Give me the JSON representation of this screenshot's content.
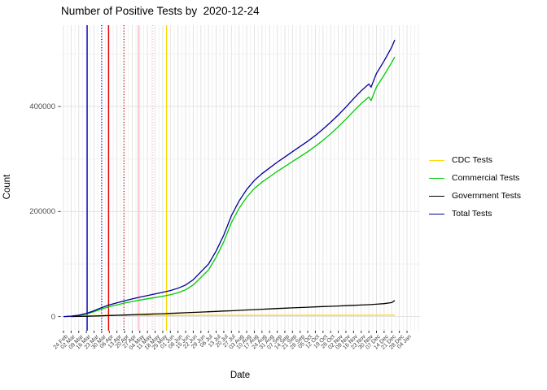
{
  "title": "Number of Positive Tests by  2020-12-24",
  "chart_data": {
    "type": "line",
    "title": "Number of Positive Tests by  2020-12-24",
    "xlabel": "Date",
    "ylabel": "Count",
    "grid": true,
    "legend_position": "right",
    "x_tick_labels": [
      "24 Feb",
      "02 Mar",
      "09 Mar",
      "16 Mar",
      "23 Mar",
      "30 Mar",
      "06 Apr",
      "13 Apr",
      "20 Apr",
      "27 Apr",
      "04 May",
      "11 May",
      "18 May",
      "25 May",
      "01 Jun",
      "08 Jun",
      "15 Jun",
      "22 Jun",
      "29 Jun",
      "06 Jul",
      "13 Jul",
      "20 Jul",
      "27 Jul",
      "03 Aug",
      "10 Aug",
      "17 Aug",
      "24 Aug",
      "31 Aug",
      "07 Sep",
      "14 Sep",
      "21 Sep",
      "28 Sep",
      "05 Oct",
      "12 Oct",
      "19 Oct",
      "26 Oct",
      "02 Nov",
      "09 Nov",
      "16 Nov",
      "23 Nov",
      "30 Nov",
      "07 Dec",
      "14 Dec",
      "21 Dec",
      "28 Dec",
      "04 Jan"
    ],
    "y_tick_labels": [
      "0",
      "200000",
      "400000"
    ],
    "y_major_values": [
      0,
      200000,
      400000
    ],
    "y_minor_values": [
      100000,
      300000,
      500000
    ],
    "ylim": [
      -27000,
      555000
    ],
    "series": [
      {
        "name": "CDC Tests",
        "color": "#FFD700",
        "points": [
          [
            0.5,
            800
          ],
          [
            2,
            1500
          ],
          [
            5,
            2000
          ],
          [
            10,
            2100
          ],
          [
            20,
            2200
          ],
          [
            30,
            2300
          ],
          [
            40,
            2400
          ],
          [
            43.4,
            2500
          ]
        ]
      },
      {
        "name": "Commercial Tests",
        "color": "#00CD00",
        "points": [
          [
            0,
            0
          ],
          [
            1,
            400
          ],
          [
            2,
            1900
          ],
          [
            3,
            4800
          ],
          [
            4,
            9200
          ],
          [
            5,
            14500
          ],
          [
            6,
            18800
          ],
          [
            7,
            22200
          ],
          [
            8,
            25600
          ],
          [
            9,
            28500
          ],
          [
            10,
            31400
          ],
          [
            11,
            33800
          ],
          [
            12,
            36200
          ],
          [
            13,
            38700
          ],
          [
            14,
            41500
          ],
          [
            15,
            45400
          ],
          [
            16,
            50800
          ],
          [
            17,
            60100
          ],
          [
            18,
            74500
          ],
          [
            19,
            88900
          ],
          [
            20,
            113200
          ],
          [
            21,
            142400
          ],
          [
            22,
            178800
          ],
          [
            23,
            206100
          ],
          [
            24,
            227400
          ],
          [
            25,
            243700
          ],
          [
            26,
            255900
          ],
          [
            27,
            266200
          ],
          [
            28,
            276500
          ],
          [
            29,
            285800
          ],
          [
            30,
            295200
          ],
          [
            31,
            304600
          ],
          [
            32,
            314000
          ],
          [
            33,
            324300
          ],
          [
            34,
            335700
          ],
          [
            35,
            348100
          ],
          [
            36,
            361500
          ],
          [
            37,
            375900
          ],
          [
            38,
            391300
          ],
          [
            39,
            405700
          ],
          [
            40,
            418100
          ],
          [
            40.3,
            411500
          ],
          [
            41,
            437100
          ],
          [
            42,
            459900
          ],
          [
            43,
            484000
          ],
          [
            43.4,
            494500
          ]
        ]
      },
      {
        "name": "Government Tests",
        "color": "#000000",
        "points": [
          [
            1,
            0
          ],
          [
            2,
            200
          ],
          [
            3,
            500
          ],
          [
            4,
            900
          ],
          [
            5,
            1400
          ],
          [
            6,
            1900
          ],
          [
            7,
            2400
          ],
          [
            8,
            2900
          ],
          [
            9,
            3400
          ],
          [
            10,
            3900
          ],
          [
            11,
            4400
          ],
          [
            12,
            4900
          ],
          [
            13,
            5400
          ],
          [
            14,
            6000
          ],
          [
            15,
            6600
          ],
          [
            16,
            7200
          ],
          [
            17,
            7800
          ],
          [
            18,
            8400
          ],
          [
            19,
            9000
          ],
          [
            20,
            9700
          ],
          [
            21,
            10400
          ],
          [
            22,
            11000
          ],
          [
            23,
            11700
          ],
          [
            24,
            12400
          ],
          [
            25,
            13100
          ],
          [
            26,
            13800
          ],
          [
            27,
            14500
          ],
          [
            28,
            15200
          ],
          [
            29,
            15900
          ],
          [
            30,
            16500
          ],
          [
            31,
            17100
          ],
          [
            32,
            17700
          ],
          [
            33,
            18300
          ],
          [
            34,
            18900
          ],
          [
            35,
            19500
          ],
          [
            36,
            20100
          ],
          [
            37,
            20700
          ],
          [
            38,
            21300
          ],
          [
            39,
            21900
          ],
          [
            40,
            22500
          ],
          [
            41,
            23400
          ],
          [
            42,
            24600
          ],
          [
            43,
            26500
          ],
          [
            43.4,
            30500
          ]
        ]
      },
      {
        "name": "Total Tests",
        "color": "#000099",
        "points": [
          [
            0,
            0
          ],
          [
            1,
            500
          ],
          [
            2,
            2500
          ],
          [
            3,
            6000
          ],
          [
            4,
            11000
          ],
          [
            5,
            17000
          ],
          [
            6,
            22000
          ],
          [
            7,
            26000
          ],
          [
            8,
            30000
          ],
          [
            9,
            33500
          ],
          [
            10,
            37000
          ],
          [
            11,
            40000
          ],
          [
            12,
            43000
          ],
          [
            13,
            46000
          ],
          [
            14,
            49500
          ],
          [
            15,
            54000
          ],
          [
            16,
            60000
          ],
          [
            17,
            70000
          ],
          [
            18,
            85000
          ],
          [
            19,
            100000
          ],
          [
            20,
            125000
          ],
          [
            21,
            155000
          ],
          [
            22,
            192000
          ],
          [
            23,
            220000
          ],
          [
            24,
            242000
          ],
          [
            25,
            259000
          ],
          [
            26,
            272000
          ],
          [
            27,
            283000
          ],
          [
            28,
            294000
          ],
          [
            29,
            304000
          ],
          [
            30,
            314000
          ],
          [
            31,
            324000
          ],
          [
            32,
            334000
          ],
          [
            33,
            345000
          ],
          [
            34,
            357000
          ],
          [
            35,
            370000
          ],
          [
            36,
            384000
          ],
          [
            37,
            399000
          ],
          [
            38,
            415000
          ],
          [
            39,
            430000
          ],
          [
            40,
            443000
          ],
          [
            40.3,
            437000
          ],
          [
            41,
            463000
          ],
          [
            42,
            487000
          ],
          [
            43,
            513000
          ],
          [
            43.4,
            527000
          ]
        ]
      }
    ],
    "vlines": [
      {
        "x_week": 3.1,
        "color": "#0000CD",
        "style": "solid"
      },
      {
        "x_week": 5.0,
        "color": "#0000CD",
        "style": "dotted"
      },
      {
        "x_week": 5.9,
        "color": "#EE0000",
        "style": "solid"
      },
      {
        "x_week": 7.9,
        "color": "#EE0000",
        "style": "dotted"
      },
      {
        "x_week": 9.8,
        "color": "#FFB6C1",
        "style": "solid"
      },
      {
        "x_week": 11.7,
        "color": "#FFB6C1",
        "style": "dotted"
      },
      {
        "x_week": 13.5,
        "color": "#FFD700",
        "style": "solid"
      }
    ],
    "grid_major_color": "#E3E3E3",
    "grid_minor_color": "#F1F1F1"
  }
}
